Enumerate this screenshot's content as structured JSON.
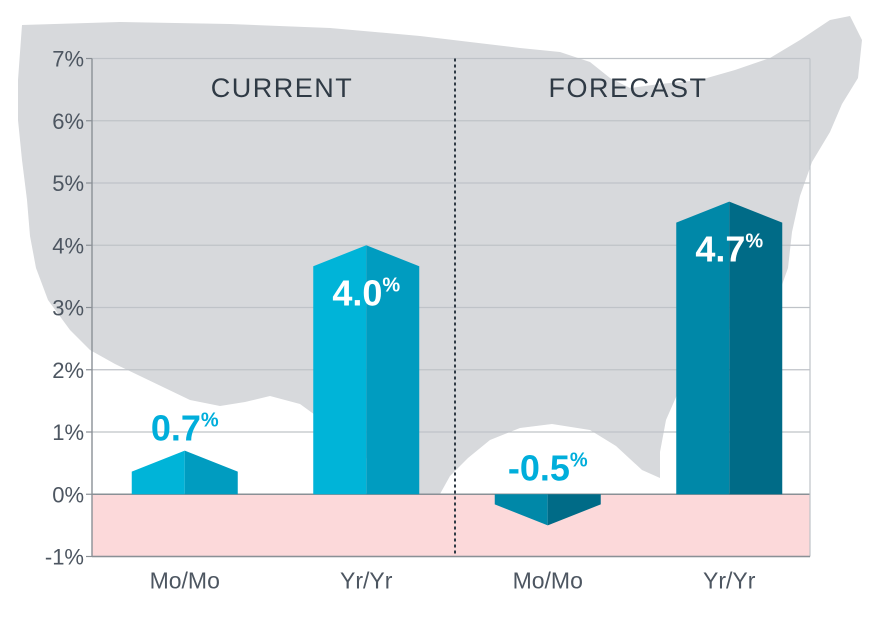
{
  "chart_data": {
    "type": "bar",
    "ylim": [
      -1,
      7
    ],
    "y_ticks": [
      {
        "value": 7,
        "label": "7%"
      },
      {
        "value": 6,
        "label": "6%"
      },
      {
        "value": 5,
        "label": "5%"
      },
      {
        "value": 4,
        "label": "4%"
      },
      {
        "value": 3,
        "label": "3%"
      },
      {
        "value": 2,
        "label": "2%"
      },
      {
        "value": 1,
        "label": "1%"
      },
      {
        "value": 0,
        "label": "0%"
      },
      {
        "value": -1,
        "label": "-1%"
      }
    ],
    "grid": true,
    "sections": [
      {
        "title": "CURRENT"
      },
      {
        "title": "FORECAST"
      }
    ],
    "bars": [
      {
        "section": "CURRENT",
        "category": "Mo/Mo",
        "value": 0.7,
        "label": "0.7",
        "suffix": "%",
        "color_front": "#00b4d8",
        "color_side": "#009cc0",
        "label_color": "#00aedb"
      },
      {
        "section": "CURRENT",
        "category": "Yr/Yr",
        "value": 4.0,
        "label": "4.0",
        "suffix": "%",
        "color_front": "#00b4d8",
        "color_side": "#009cc0",
        "label_color": "#ffffff"
      },
      {
        "section": "FORECAST",
        "category": "Mo/Mo",
        "value": -0.5,
        "label": "-0.5",
        "suffix": "%",
        "color_front": "#0088a8",
        "color_side": "#006b87",
        "label_color": "#00aedb"
      },
      {
        "section": "FORECAST",
        "category": "Yr/Yr",
        "value": 4.7,
        "label": "4.7",
        "suffix": "%",
        "color_front": "#0088a8",
        "color_side": "#006b87",
        "label_color": "#ffffff"
      }
    ],
    "colors": {
      "background_map": "#d7d9dc",
      "negative_zone": "#fcd9da",
      "gridline": "#bfc3c8",
      "axis": "#8a9096",
      "divider": "#2f3a45"
    }
  }
}
